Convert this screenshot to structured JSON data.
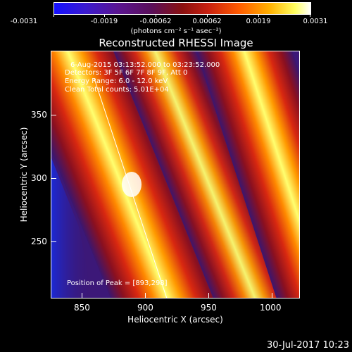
{
  "colorbar": {
    "tick_labels": [
      "-0.0031",
      "-0.0019",
      "-0.00062",
      "0.00062",
      "0.0019",
      "0.0031"
    ],
    "unit_label": "(photons cm⁻² s⁻¹ asec⁻²)"
  },
  "title": "Reconstructed RHESSI Image",
  "info": {
    "line1": "6-Aug-2015 03:13:52.000 to 03:23:52.000",
    "line2": "Detectors: 3F 5F 6F 7F 8F 9F, Att 0",
    "line3": "Energy Range: 6.0 - 12.0 keV",
    "line4": "Clean   Total counts: 5.01E+04"
  },
  "peak_label": "Position of Peak = [893,298]",
  "axes": {
    "x_label": "Heliocentric X (arcsec)",
    "y_label": "Heliocentric Y (arcsec)",
    "x_ticks": [
      "850",
      "900",
      "950",
      "1000"
    ],
    "y_ticks": [
      "350",
      "300",
      "250"
    ]
  },
  "timestamp": "30-Jul-2017 10:23",
  "colors": {
    "background": "#000000",
    "band_bright": "#ffff80",
    "band_mid": "#ff8a00",
    "band_red": "#c81e14",
    "trough": "#4a1a7a",
    "low": "#1a2ad8"
  }
}
